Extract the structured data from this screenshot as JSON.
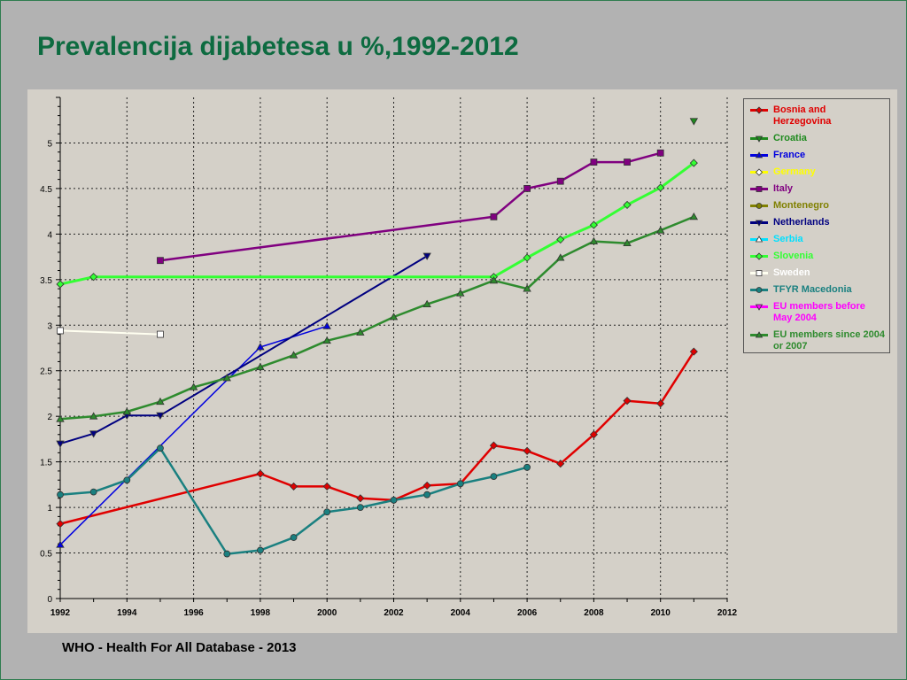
{
  "slide": {
    "title": "Prevalencija dijabetesa u %,1992-2012",
    "source": "WHO - Health For All Database - 2013"
  },
  "chart_data": {
    "type": "line",
    "title": "",
    "xlabel": "",
    "ylabel": "",
    "xlim": [
      1992,
      2012
    ],
    "ylim": [
      0,
      5.5
    ],
    "x_ticks": [
      "1992",
      "1994",
      "1996",
      "1998",
      "2000",
      "2002",
      "2004",
      "2006",
      "2008",
      "2010",
      "2012"
    ],
    "y_ticks": [
      "0",
      "0.5",
      "1",
      "1.5",
      "2",
      "2.5",
      "3",
      "3.5",
      "4",
      "4.5",
      "5"
    ],
    "grid": true,
    "legend_position": "right",
    "series": [
      {
        "name": "Bosnia and Herzegovina",
        "color": "#e00000",
        "marker": "diamond",
        "points": [
          [
            1992,
            0.82
          ],
          [
            1998,
            1.37
          ],
          [
            1999,
            1.23
          ],
          [
            2000,
            1.23
          ],
          [
            2001,
            1.1
          ],
          [
            2002,
            1.08
          ],
          [
            2003,
            1.24
          ],
          [
            2004,
            1.26
          ],
          [
            2005,
            1.68
          ],
          [
            2006,
            1.62
          ],
          [
            2007,
            1.48
          ],
          [
            2008,
            1.8
          ],
          [
            2009,
            2.17
          ],
          [
            2010,
            2.14
          ],
          [
            2011,
            2.71
          ]
        ]
      },
      {
        "name": "Croatia",
        "color": "#1e8a1e",
        "marker": "triangle-down",
        "points": [
          [
            2011,
            5.24
          ]
        ]
      },
      {
        "name": "France",
        "color": "#0000e0",
        "marker": "triangle-up",
        "points": [
          [
            1992,
            0.59
          ],
          [
            1998,
            2.76
          ],
          [
            2000,
            2.99
          ]
        ]
      },
      {
        "name": "Germany",
        "color": "#ffff00",
        "marker": "diamond-open",
        "points": []
      },
      {
        "name": "Italy",
        "color": "#800080",
        "marker": "square",
        "points": [
          [
            1995,
            3.71
          ],
          [
            2005,
            4.19
          ],
          [
            2006,
            4.5
          ],
          [
            2007,
            4.58
          ],
          [
            2008,
            4.79
          ],
          [
            2009,
            4.79
          ],
          [
            2010,
            4.89
          ]
        ]
      },
      {
        "name": "Montenegro",
        "color": "#808000",
        "marker": "circle",
        "points": []
      },
      {
        "name": "Netherlands",
        "color": "#000080",
        "marker": "triangle-down",
        "points": [
          [
            1992,
            1.7
          ],
          [
            1993,
            1.81
          ],
          [
            1994,
            2.01
          ],
          [
            1995,
            2.01
          ],
          [
            2003,
            3.76
          ]
        ]
      },
      {
        "name": "Serbia",
        "color": "#00e0ff",
        "marker": "triangle-up-open",
        "points": []
      },
      {
        "name": "Slovenia",
        "color": "#33ff33",
        "marker": "diamond",
        "points": [
          [
            1992,
            3.45
          ],
          [
            1993,
            3.53
          ],
          [
            2005,
            3.53
          ],
          [
            2006,
            3.74
          ],
          [
            2007,
            3.94
          ],
          [
            2008,
            4.1
          ],
          [
            2009,
            4.32
          ],
          [
            2010,
            4.51
          ],
          [
            2011,
            4.78
          ]
        ]
      },
      {
        "name": "Sweden",
        "color": "#fffff0",
        "marker": "square-open",
        "points": [
          [
            1992,
            2.94
          ],
          [
            1995,
            2.9
          ]
        ]
      },
      {
        "name": "TFYR Macedonia",
        "color": "#1a8080",
        "marker": "circle",
        "points": [
          [
            1992,
            1.14
          ],
          [
            1993,
            1.17
          ],
          [
            1994,
            1.3
          ],
          [
            1995,
            1.65
          ],
          [
            1997,
            0.49
          ],
          [
            1998,
            0.53
          ],
          [
            1999,
            0.67
          ],
          [
            2000,
            0.95
          ],
          [
            2001,
            1.0
          ],
          [
            2002,
            1.08
          ],
          [
            2003,
            1.14
          ],
          [
            2004,
            1.26
          ],
          [
            2005,
            1.34
          ],
          [
            2006,
            1.44
          ]
        ]
      },
      {
        "name": "EU members before May 2004",
        "color": "#ff00ff",
        "marker": "triangle-down",
        "points": []
      },
      {
        "name": "EU members since 2004 or 2007",
        "color": "#2e8b2e",
        "marker": "triangle-up",
        "points": [
          [
            1992,
            1.97
          ],
          [
            1993,
            2.0
          ],
          [
            1994,
            2.05
          ],
          [
            1995,
            2.16
          ],
          [
            1996,
            2.32
          ],
          [
            1997,
            2.42
          ],
          [
            1998,
            2.54
          ],
          [
            1999,
            2.67
          ],
          [
            2000,
            2.83
          ],
          [
            2001,
            2.92
          ],
          [
            2002,
            3.09
          ],
          [
            2003,
            3.23
          ],
          [
            2004,
            3.35
          ],
          [
            2005,
            3.49
          ],
          [
            2006,
            3.4
          ],
          [
            2007,
            3.74
          ],
          [
            2008,
            3.92
          ],
          [
            2009,
            3.9
          ],
          [
            2010,
            4.04
          ],
          [
            2011,
            4.19
          ]
        ]
      }
    ]
  }
}
